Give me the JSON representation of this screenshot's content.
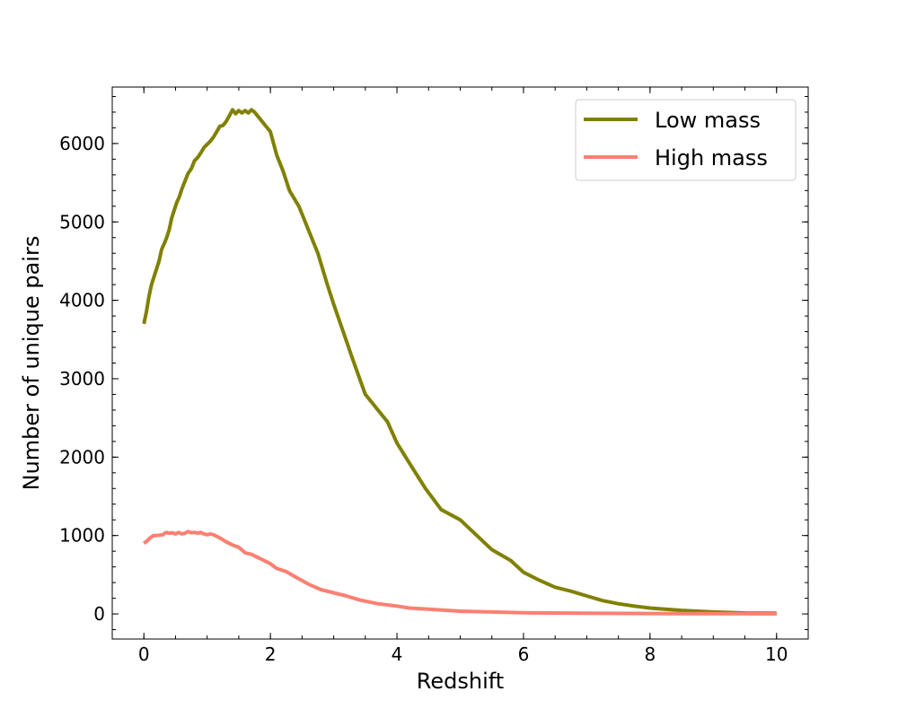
{
  "chart_data": {
    "type": "line",
    "title": "",
    "xlabel": "Redshift",
    "ylabel": "Number of unique pairs",
    "xlim": [
      -0.5,
      10.5
    ],
    "ylim": [
      -320,
      6720
    ],
    "x_ticks": [
      0,
      2,
      4,
      6,
      8,
      10
    ],
    "x_minor_step": 0.5,
    "y_ticks": [
      0,
      1000,
      2000,
      3000,
      4000,
      5000,
      6000
    ],
    "y_minor_step": 200,
    "tick_direction": "in",
    "grid": false,
    "legend": {
      "location": "upper right"
    },
    "series": [
      {
        "name": "Low mass",
        "color": "#808000",
        "x": [
          0.0,
          0.04,
          0.08,
          0.12,
          0.16,
          0.2,
          0.24,
          0.28,
          0.32,
          0.36,
          0.4,
          0.44,
          0.48,
          0.52,
          0.56,
          0.6,
          0.65,
          0.7,
          0.75,
          0.8,
          0.85,
          0.9,
          0.95,
          1.0,
          1.05,
          1.1,
          1.15,
          1.2,
          1.25,
          1.3,
          1.35,
          1.4,
          1.45,
          1.5,
          1.55,
          1.6,
          1.65,
          1.7,
          1.75,
          1.8,
          1.9,
          2.0,
          2.1,
          2.2,
          2.3,
          2.45,
          2.6,
          2.75,
          2.9,
          3.0,
          3.15,
          3.3,
          3.5,
          3.7,
          3.85,
          4.0,
          4.2,
          4.45,
          4.7,
          5.0,
          5.25,
          5.5,
          5.8,
          6.0,
          6.25,
          6.5,
          6.75,
          7.0,
          7.25,
          7.5,
          7.75,
          8.0,
          8.5,
          9.0,
          9.5,
          10.0
        ],
        "values": [
          3700,
          3850,
          4050,
          4200,
          4300,
          4400,
          4500,
          4650,
          4720,
          4800,
          4900,
          5050,
          5150,
          5250,
          5320,
          5420,
          5520,
          5620,
          5680,
          5780,
          5820,
          5880,
          5950,
          5990,
          6030,
          6080,
          6150,
          6220,
          6230,
          6280,
          6350,
          6430,
          6380,
          6420,
          6390,
          6420,
          6390,
          6430,
          6400,
          6350,
          6250,
          6150,
          5850,
          5650,
          5400,
          5200,
          4900,
          4600,
          4200,
          3950,
          3600,
          3250,
          2800,
          2600,
          2450,
          2180,
          1920,
          1600,
          1330,
          1200,
          1010,
          820,
          680,
          530,
          430,
          340,
          290,
          230,
          170,
          130,
          100,
          75,
          45,
          25,
          12,
          10
        ]
      },
      {
        "name": "High mass",
        "color": "#fa8072",
        "x": [
          0.0,
          0.05,
          0.1,
          0.15,
          0.2,
          0.3,
          0.35,
          0.4,
          0.45,
          0.5,
          0.55,
          0.6,
          0.65,
          0.7,
          0.75,
          0.8,
          0.85,
          0.9,
          0.95,
          1.0,
          1.05,
          1.1,
          1.2,
          1.3,
          1.4,
          1.5,
          1.6,
          1.7,
          1.8,
          1.9,
          2.0,
          2.1,
          2.25,
          2.4,
          2.6,
          2.8,
          3.0,
          3.2,
          3.4,
          3.7,
          4.0,
          4.2,
          4.5,
          4.8,
          5.0,
          5.5,
          6.0,
          7.0,
          8.0,
          9.0,
          10.0
        ],
        "values": [
          900,
          930,
          970,
          1000,
          1000,
          1010,
          1040,
          1030,
          1035,
          1020,
          1040,
          1020,
          1030,
          1050,
          1035,
          1040,
          1030,
          1040,
          1020,
          1010,
          1020,
          1010,
          970,
          920,
          880,
          850,
          780,
          760,
          720,
          680,
          640,
          580,
          540,
          470,
          380,
          310,
          270,
          230,
          180,
          130,
          100,
          75,
          60,
          45,
          35,
          25,
          15,
          8,
          5,
          3,
          2
        ]
      }
    ]
  }
}
